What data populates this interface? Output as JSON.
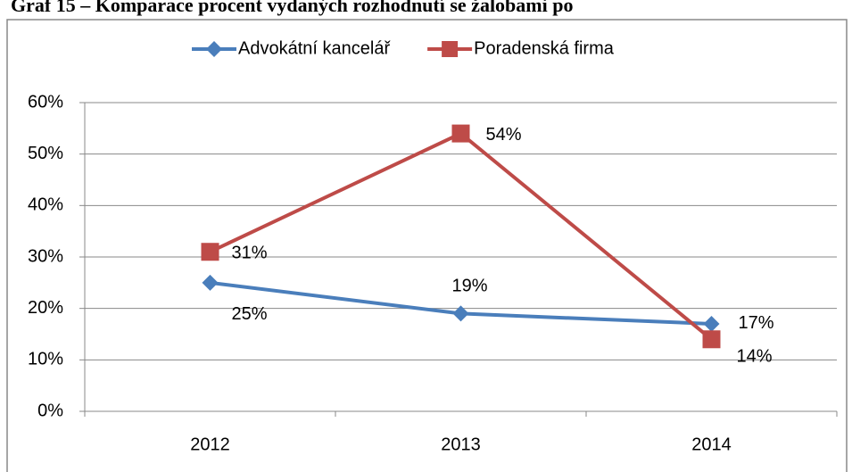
{
  "chart_data": {
    "type": "line",
    "title": "Graf 15 – Komparace procent vydaných rozhodnutí se žalobami po",
    "categories": [
      "2012",
      "2013",
      "2014"
    ],
    "series": [
      {
        "name": "Advokátní kancelář",
        "color": "#4a7ebb",
        "marker": "diamond",
        "values": [
          25,
          19,
          17
        ],
        "value_labels": [
          "25%",
          "19%",
          "17%"
        ]
      },
      {
        "name": "Poradenská firma",
        "color": "#be4b48",
        "marker": "square",
        "values": [
          31,
          54,
          14
        ],
        "value_labels": [
          "31%",
          "54%",
          "14%"
        ]
      }
    ],
    "ylim": [
      0,
      60
    ],
    "yticks": [
      {
        "value": 0,
        "label": "0%"
      },
      {
        "value": 10,
        "label": "10%"
      },
      {
        "value": 20,
        "label": "20%"
      },
      {
        "value": 30,
        "label": "30%"
      },
      {
        "value": 40,
        "label": "40%"
      },
      {
        "value": 50,
        "label": "50%"
      },
      {
        "value": 60,
        "label": "60%"
      }
    ],
    "grid": true,
    "legend": "top"
  }
}
